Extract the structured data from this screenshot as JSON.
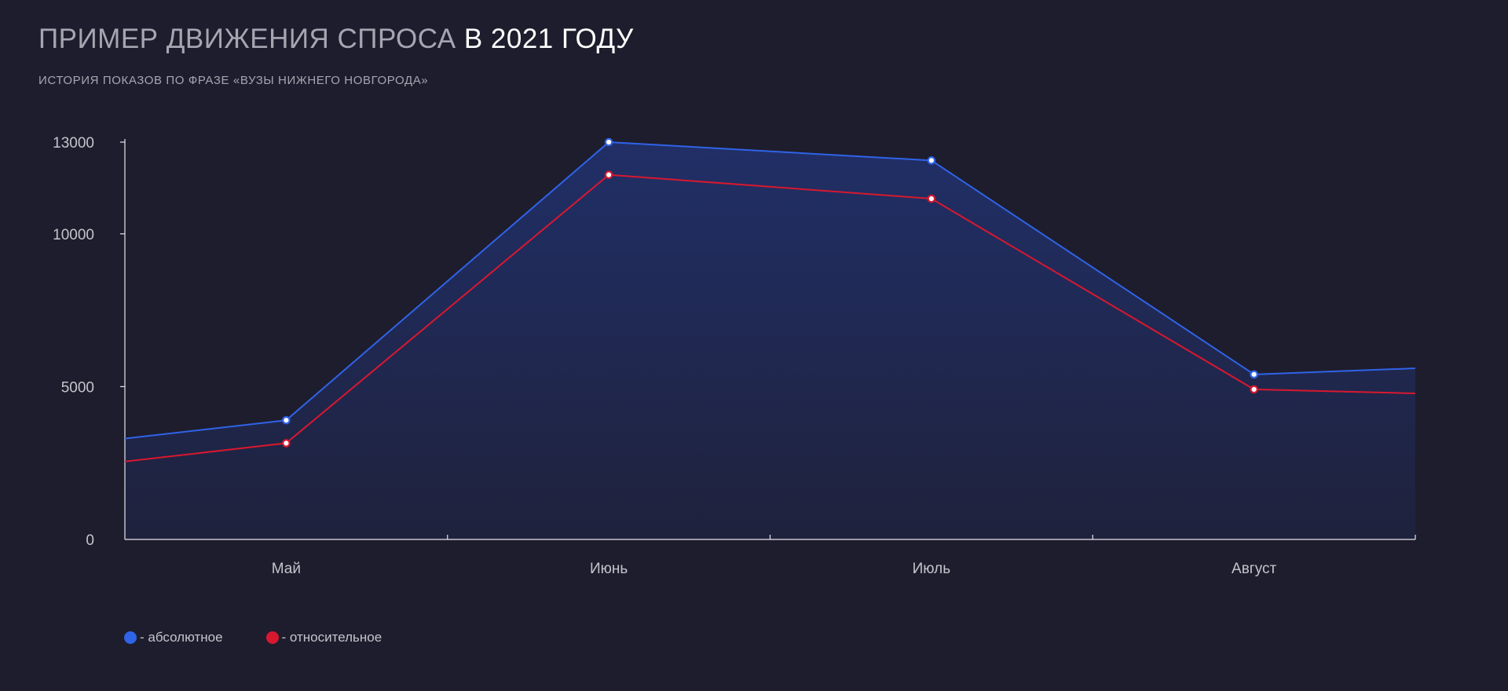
{
  "title": {
    "muted": "ПРИМЕР ДВИЖЕНИЯ СПРОСА",
    "bright": "В 2021 ГОДУ"
  },
  "subtitle": "ИСТОРИЯ ПОКАЗОВ ПО ФРАЗЕ «ВУЗЫ НИЖНЕГО НОВГОРОДА»",
  "chart_data": {
    "type": "line",
    "categories": [
      "Май",
      "Июнь",
      "Июль",
      "Август"
    ],
    "yticks": [
      "0",
      "5000",
      "10000",
      "13000"
    ],
    "ytick_values": [
      0,
      5000,
      10000,
      13000
    ],
    "xlim": [
      0,
      4
    ],
    "ylim": [
      0,
      13000
    ],
    "grid": false,
    "legend_position": "bottom-left",
    "series": [
      {
        "name": "- абсолютное",
        "color": "#2f63e8",
        "area_fill": true,
        "x": [
          0,
          0.5,
          1.5,
          2.5,
          3.5,
          4
        ],
        "values": [
          3300,
          3900,
          13000,
          12400,
          5400,
          5600
        ],
        "markers": [
          false,
          true,
          true,
          true,
          true,
          false
        ]
      },
      {
        "name": "- относительное",
        "color": "#d8182f",
        "area_fill": false,
        "x": [
          0,
          0.5,
          1.5,
          2.5,
          3.5,
          4
        ],
        "values": [
          2550,
          3150,
          11930,
          11150,
          4910,
          4780
        ],
        "markers": [
          false,
          true,
          true,
          true,
          true,
          false
        ]
      }
    ]
  },
  "legend": {
    "absolute_color": "#2f63e8",
    "relative_color": "#d8182f"
  }
}
